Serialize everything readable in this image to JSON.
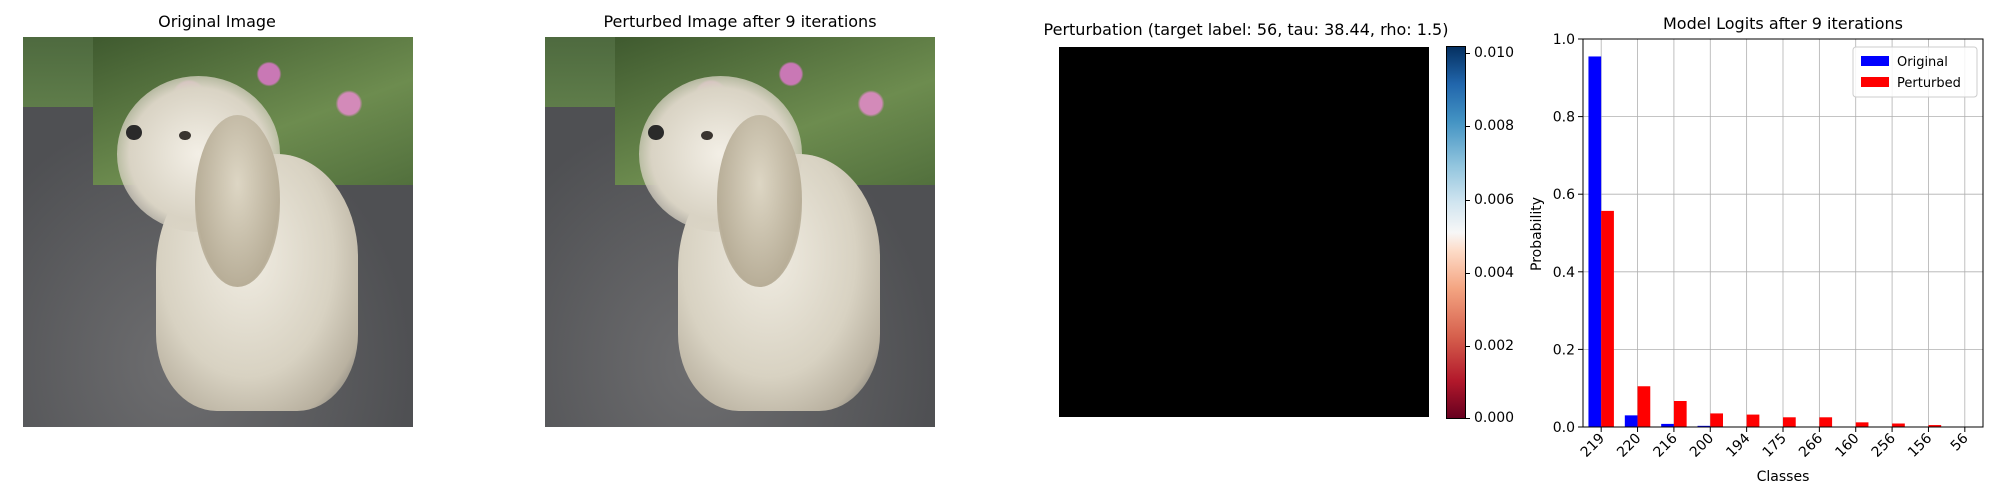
{
  "panels": {
    "original": {
      "title": "Original Image"
    },
    "perturbed": {
      "title": "Perturbed Image after 9 iterations"
    },
    "perturbation": {
      "title": "Perturbation (target label: 56, tau: 38.44, rho: 1.5)",
      "colorbar_ticks": [
        "0.000",
        "0.002",
        "0.004",
        "0.006",
        "0.008",
        "0.010"
      ],
      "colormap_colors": [
        "#67001f",
        "#f7f7f7",
        "#053061"
      ]
    }
  },
  "chart_data": {
    "type": "bar",
    "title": "Model Logits after 9 iterations",
    "xlabel": "Classes",
    "ylabel": "Probability",
    "ylim": [
      0,
      1.0
    ],
    "yticks": [
      "0.0",
      "0.2",
      "0.4",
      "0.6",
      "0.8",
      "1.0"
    ],
    "grid": true,
    "legend_position": "top-right",
    "categories": [
      "219",
      "220",
      "216",
      "200",
      "194",
      "175",
      "266",
      "160",
      "256",
      "156",
      "56"
    ],
    "series": [
      {
        "name": "Original",
        "color": "#0000ff",
        "values": [
          0.955,
          0.03,
          0.008,
          0.003,
          0.001,
          0.0005,
          0.0003,
          0.0002,
          0.0001,
          0.0001,
          0.0
        ]
      },
      {
        "name": "Perturbed",
        "color": "#ff0000",
        "values": [
          0.557,
          0.105,
          0.067,
          0.035,
          0.032,
          0.025,
          0.025,
          0.012,
          0.009,
          0.005,
          0.001
        ]
      }
    ]
  }
}
